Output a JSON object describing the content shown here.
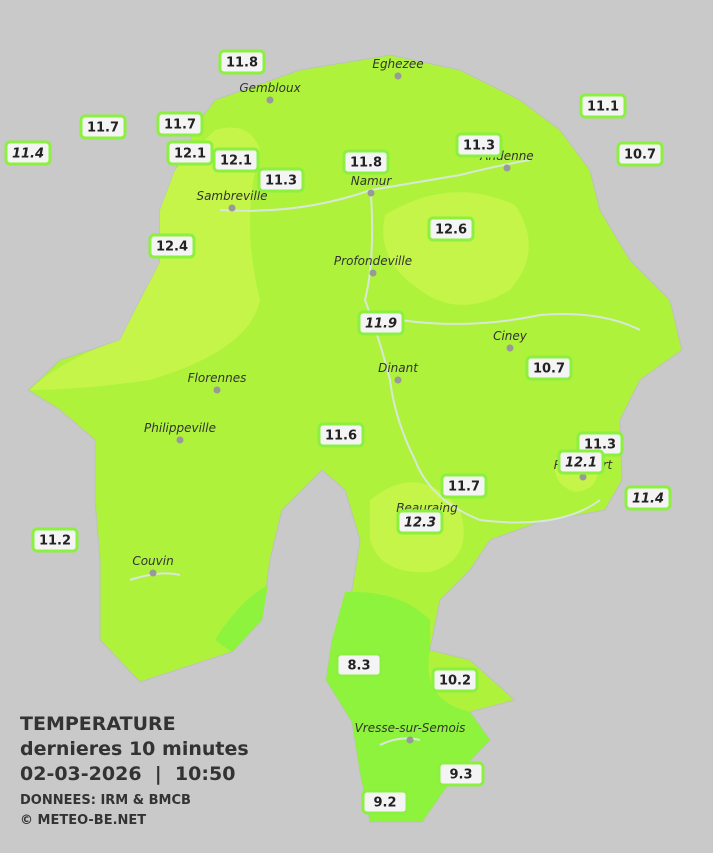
{
  "header": {
    "title": "TEMPERATURE",
    "subtitle": "dernieres 10 minutes",
    "timestamp": "02-03-2026  |  10:50",
    "source": "DONNEES: IRM & BMCB",
    "copyright": "© METEO-BE.NET"
  },
  "cities": [
    "Eghezee",
    "Gembloux",
    "Andenne",
    "Namur",
    "Sambreville",
    "Profondeville",
    "Ciney",
    "Dinant",
    "Florennes",
    "Philippeville",
    "Rochefort",
    "Beauraing",
    "Couvin",
    "Vresse-sur-Semois"
  ],
  "stations": [
    11.8,
    11.1,
    11.7,
    11.7,
    11.4,
    12.1,
    12.1,
    11.3,
    10.7,
    11.8,
    11.3,
    12.6,
    12.4,
    11.9,
    10.7,
    11.6,
    11.3,
    12.1,
    11.7,
    11.4,
    12.3,
    11.2,
    8.3,
    10.2,
    9.3,
    9.2
  ]
}
